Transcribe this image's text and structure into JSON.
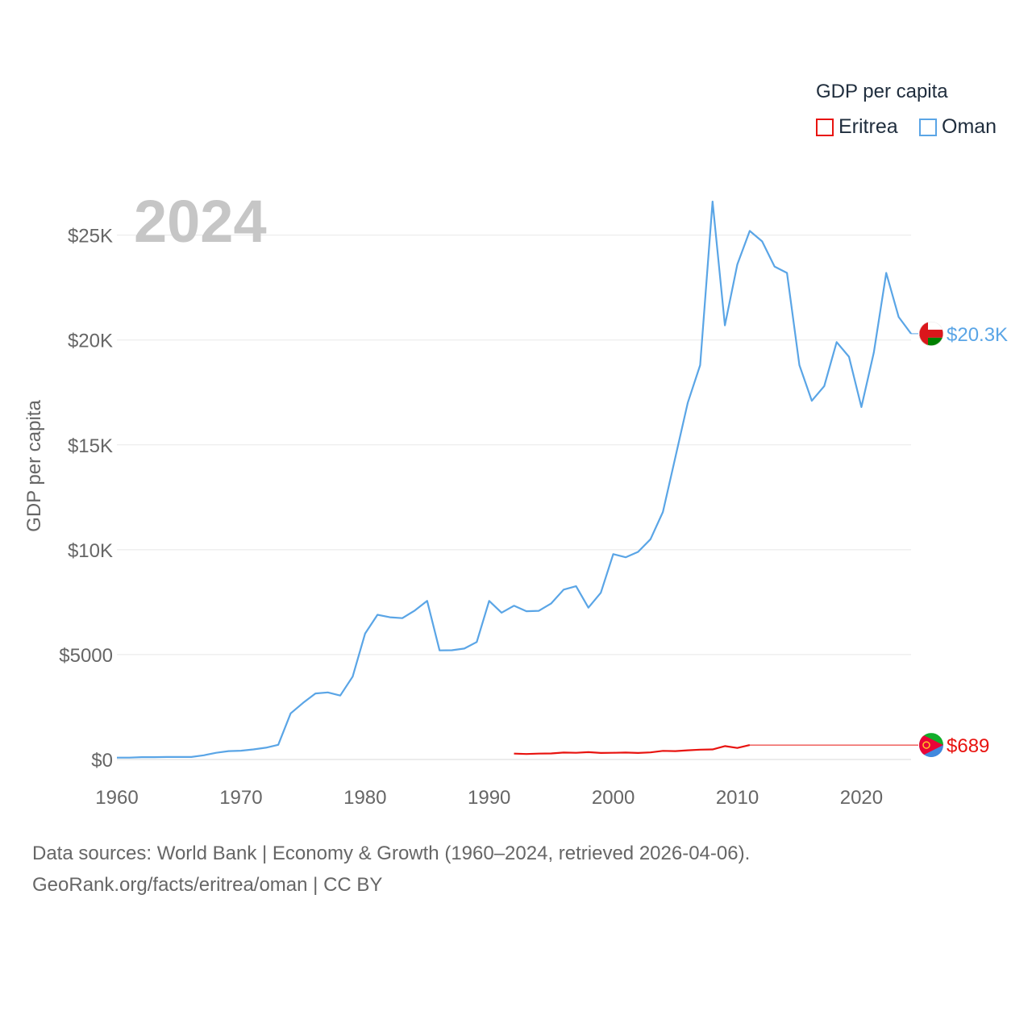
{
  "legend": {
    "title": "GDP per capita",
    "items": [
      {
        "label": "Eritrea",
        "color": "#e8130f"
      },
      {
        "label": "Oman",
        "color": "#5aa5e6"
      }
    ]
  },
  "footer": {
    "line1": "Data sources: World Bank | Economy & Growth (1960–2024, retrieved 2026-04-06).",
    "line2": "GeoRank.org/facts/eritrea/oman | CC BY"
  },
  "chart_data": {
    "type": "line",
    "year_label": "2024",
    "ylabel": "GDP per capita",
    "xlim": [
      1960,
      2024
    ],
    "ylim": [
      0,
      26600
    ],
    "x_ticks": [
      1960,
      1970,
      1980,
      1990,
      2000,
      2010,
      2020
    ],
    "x_tick_labels": [
      "1960",
      "1970",
      "1980",
      "1990",
      "2000",
      "2010",
      "2020"
    ],
    "y_ticks": [
      0,
      5000,
      10000,
      15000,
      20000,
      25000
    ],
    "y_tick_labels": [
      "$0",
      "$5000",
      "$10K",
      "$15K",
      "$20K",
      "$25K"
    ],
    "series": [
      {
        "name": "Oman",
        "color": "#5aa5e6",
        "end_label": "$20.3K",
        "end_value": 20300,
        "x": [
          1960,
          1961,
          1962,
          1963,
          1964,
          1965,
          1966,
          1967,
          1968,
          1969,
          1970,
          1971,
          1972,
          1973,
          1974,
          1975,
          1976,
          1977,
          1978,
          1979,
          1980,
          1981,
          1982,
          1983,
          1984,
          1985,
          1986,
          1987,
          1988,
          1989,
          1990,
          1991,
          1992,
          1993,
          1994,
          1995,
          1996,
          1997,
          1998,
          1999,
          2000,
          2001,
          2002,
          2003,
          2004,
          2005,
          2006,
          2007,
          2008,
          2009,
          2010,
          2011,
          2012,
          2013,
          2014,
          2015,
          2016,
          2017,
          2018,
          2019,
          2020,
          2021,
          2022,
          2023,
          2024
        ],
        "values": [
          90,
          90,
          110,
          110,
          120,
          120,
          120,
          200,
          320,
          400,
          420,
          480,
          560,
          700,
          2200,
          2700,
          3150,
          3200,
          3050,
          3950,
          6000,
          6900,
          6780,
          6740,
          7100,
          7560,
          5200,
          5210,
          5290,
          5600,
          7560,
          7000,
          7330,
          7070,
          7090,
          7440,
          8100,
          8260,
          7240,
          7950,
          9790,
          9640,
          9900,
          10500,
          11800,
          14400,
          17000,
          18800,
          26600,
          20700,
          23600,
          25200,
          24700,
          23500,
          23200,
          18800,
          17100,
          17800,
          19900,
          19200,
          16800,
          19400,
          23200,
          21100,
          20300
        ]
      },
      {
        "name": "Eritrea",
        "color": "#e8130f",
        "end_label": "$689",
        "end_value": 689,
        "x": [
          1992,
          1993,
          1994,
          1995,
          1996,
          1997,
          1998,
          1999,
          2000,
          2001,
          2002,
          2003,
          2004,
          2005,
          2006,
          2007,
          2008,
          2009,
          2010,
          2011
        ],
        "values": [
          280,
          260,
          280,
          290,
          330,
          320,
          350,
          310,
          320,
          330,
          310,
          340,
          410,
          400,
          440,
          470,
          480,
          640,
          550,
          689
        ]
      }
    ]
  }
}
